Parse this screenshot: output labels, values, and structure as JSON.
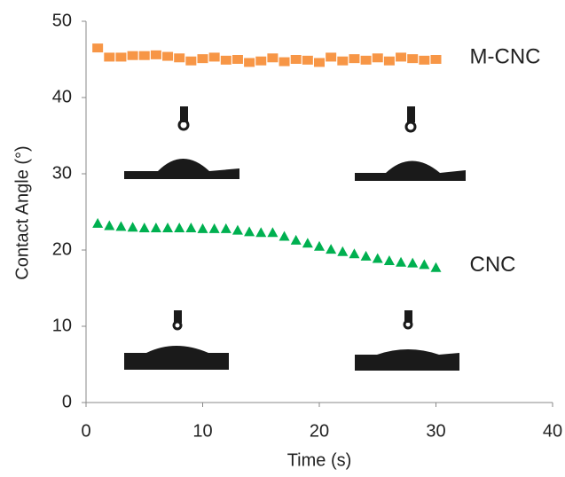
{
  "chart_data": {
    "type": "scatter",
    "xlabel": "Time (s)",
    "ylabel": "Contact Angle (°)",
    "xlim": [
      0,
      40
    ],
    "xticks": [
      0,
      10,
      20,
      30,
      40
    ],
    "ylim": [
      0,
      50
    ],
    "yticks": [
      0,
      10,
      20,
      30,
      40,
      50
    ],
    "x": [
      1,
      2,
      3,
      4,
      5,
      6,
      7,
      8,
      9,
      10,
      11,
      12,
      13,
      14,
      15,
      16,
      17,
      18,
      19,
      20,
      21,
      22,
      23,
      24,
      25,
      26,
      27,
      28,
      29,
      30
    ],
    "series": [
      {
        "name": "M-CNC",
        "color": "#f79646",
        "marker": "square",
        "values": [
          46.5,
          45.3,
          45.3,
          45.5,
          45.5,
          45.6,
          45.4,
          45.2,
          44.8,
          45.1,
          45.3,
          44.9,
          45.0,
          44.6,
          44.8,
          45.2,
          44.7,
          45.0,
          44.9,
          44.6,
          45.3,
          44.8,
          45.1,
          44.9,
          45.2,
          44.8,
          45.3,
          45.1,
          44.9,
          45.0
        ]
      },
      {
        "name": "CNC",
        "color": "#00b050",
        "marker": "triangle",
        "values": [
          23.5,
          23.2,
          23.1,
          23.0,
          22.9,
          22.9,
          22.9,
          22.9,
          22.9,
          22.8,
          22.8,
          22.8,
          22.6,
          22.4,
          22.3,
          22.3,
          21.8,
          21.3,
          20.9,
          20.5,
          20.1,
          19.8,
          19.5,
          19.2,
          18.9,
          18.6,
          18.4,
          18.3,
          18.1,
          17.7
        ]
      }
    ]
  }
}
